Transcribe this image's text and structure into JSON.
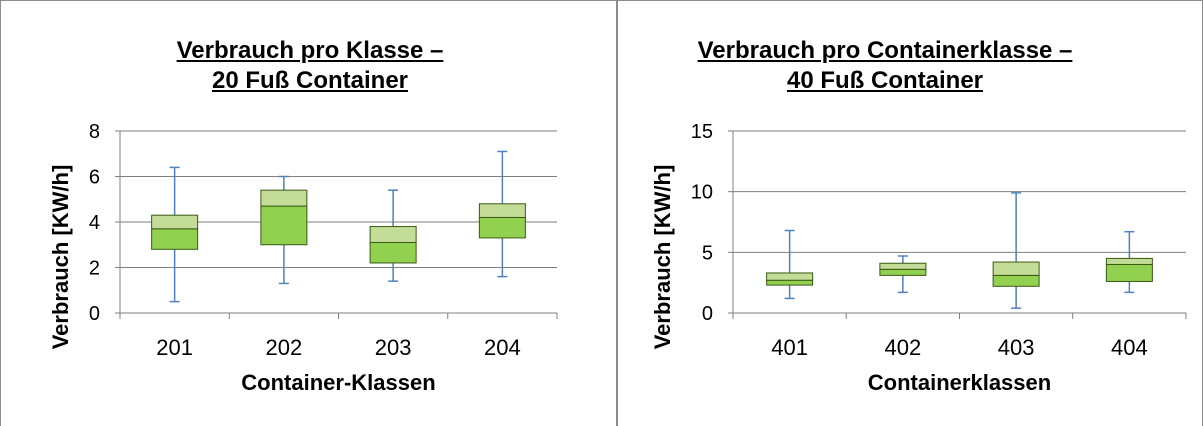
{
  "colors": {
    "box_upper": "#c3dc98",
    "box_lower": "#92d050",
    "box_stroke": "#3a5a14",
    "whisker": "#4f81bd",
    "grid": "#7f7f7f",
    "text": "#000000"
  },
  "chart_data": [
    {
      "type": "box",
      "title_lines": [
        "Verbrauch pro Klasse –",
        "20 Fuß Container"
      ],
      "xlabel": "Container-Klassen",
      "ylabel": "Verbrauch [KW/h]",
      "ylim": [
        0,
        8
      ],
      "yticks": [
        "0",
        "2",
        "4",
        "6",
        "8"
      ],
      "ytick_values": [
        0,
        2,
        4,
        6,
        8
      ],
      "grid": true,
      "categories": [
        "201",
        "202",
        "203",
        "204"
      ],
      "boxes": [
        {
          "min": 0.5,
          "q1": 2.8,
          "median": 3.7,
          "q3": 4.3,
          "max": 6.4
        },
        {
          "min": 1.3,
          "q1": 3.0,
          "median": 4.7,
          "q3": 5.4,
          "max": 6.0
        },
        {
          "min": 1.4,
          "q1": 2.2,
          "median": 3.1,
          "q3": 3.8,
          "max": 5.4
        },
        {
          "min": 1.6,
          "q1": 3.3,
          "median": 4.2,
          "q3": 4.8,
          "max": 7.1
        }
      ]
    },
    {
      "type": "box",
      "title_lines": [
        "Verbrauch pro Containerklasse –",
        "40 Fuß Container"
      ],
      "xlabel": "Containerklassen",
      "ylabel": "Verbrauch [KW/h]",
      "ylim": [
        0,
        15
      ],
      "yticks": [
        "0",
        "5",
        "10",
        "15"
      ],
      "ytick_values": [
        0,
        5,
        10,
        15
      ],
      "grid": true,
      "categories": [
        "401",
        "402",
        "403",
        "404"
      ],
      "boxes": [
        {
          "min": 1.2,
          "q1": 2.3,
          "median": 2.7,
          "q3": 3.3,
          "max": 6.8
        },
        {
          "min": 1.7,
          "q1": 3.1,
          "median": 3.6,
          "q3": 4.1,
          "max": 4.7
        },
        {
          "min": 0.4,
          "q1": 2.2,
          "median": 3.1,
          "q3": 4.2,
          "max": 9.9
        },
        {
          "min": 1.7,
          "q1": 2.6,
          "median": 4.0,
          "q3": 4.5,
          "max": 6.7
        }
      ]
    }
  ]
}
